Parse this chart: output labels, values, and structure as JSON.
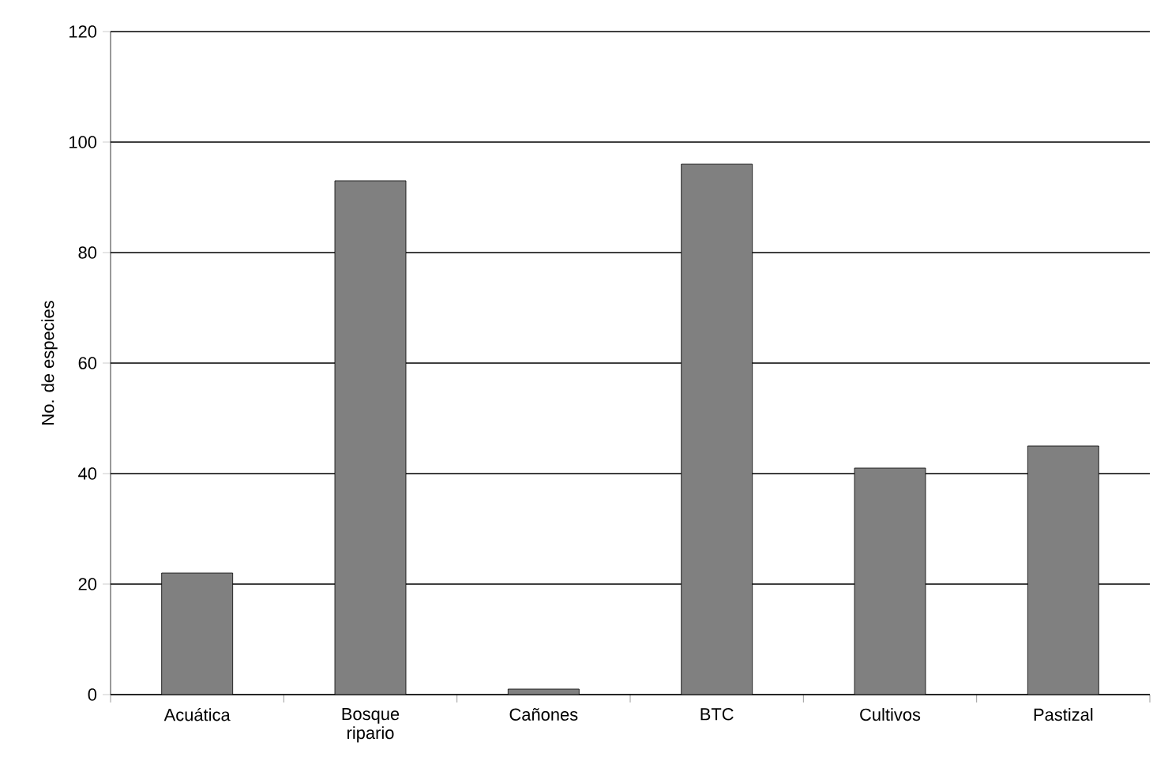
{
  "chart_data": {
    "type": "bar",
    "ylabel": "No. de especies",
    "categories": [
      "Acuática",
      "Bosque ripario",
      "Cañones",
      "BTC",
      "Cultivos",
      "Pastizal"
    ],
    "values": [
      22,
      93,
      1,
      96,
      41,
      45
    ],
    "color": "#808080",
    "ylim": [
      0,
      120
    ],
    "yticks": [
      0,
      20,
      40,
      60,
      80,
      100,
      120
    ],
    "grid": "y"
  }
}
